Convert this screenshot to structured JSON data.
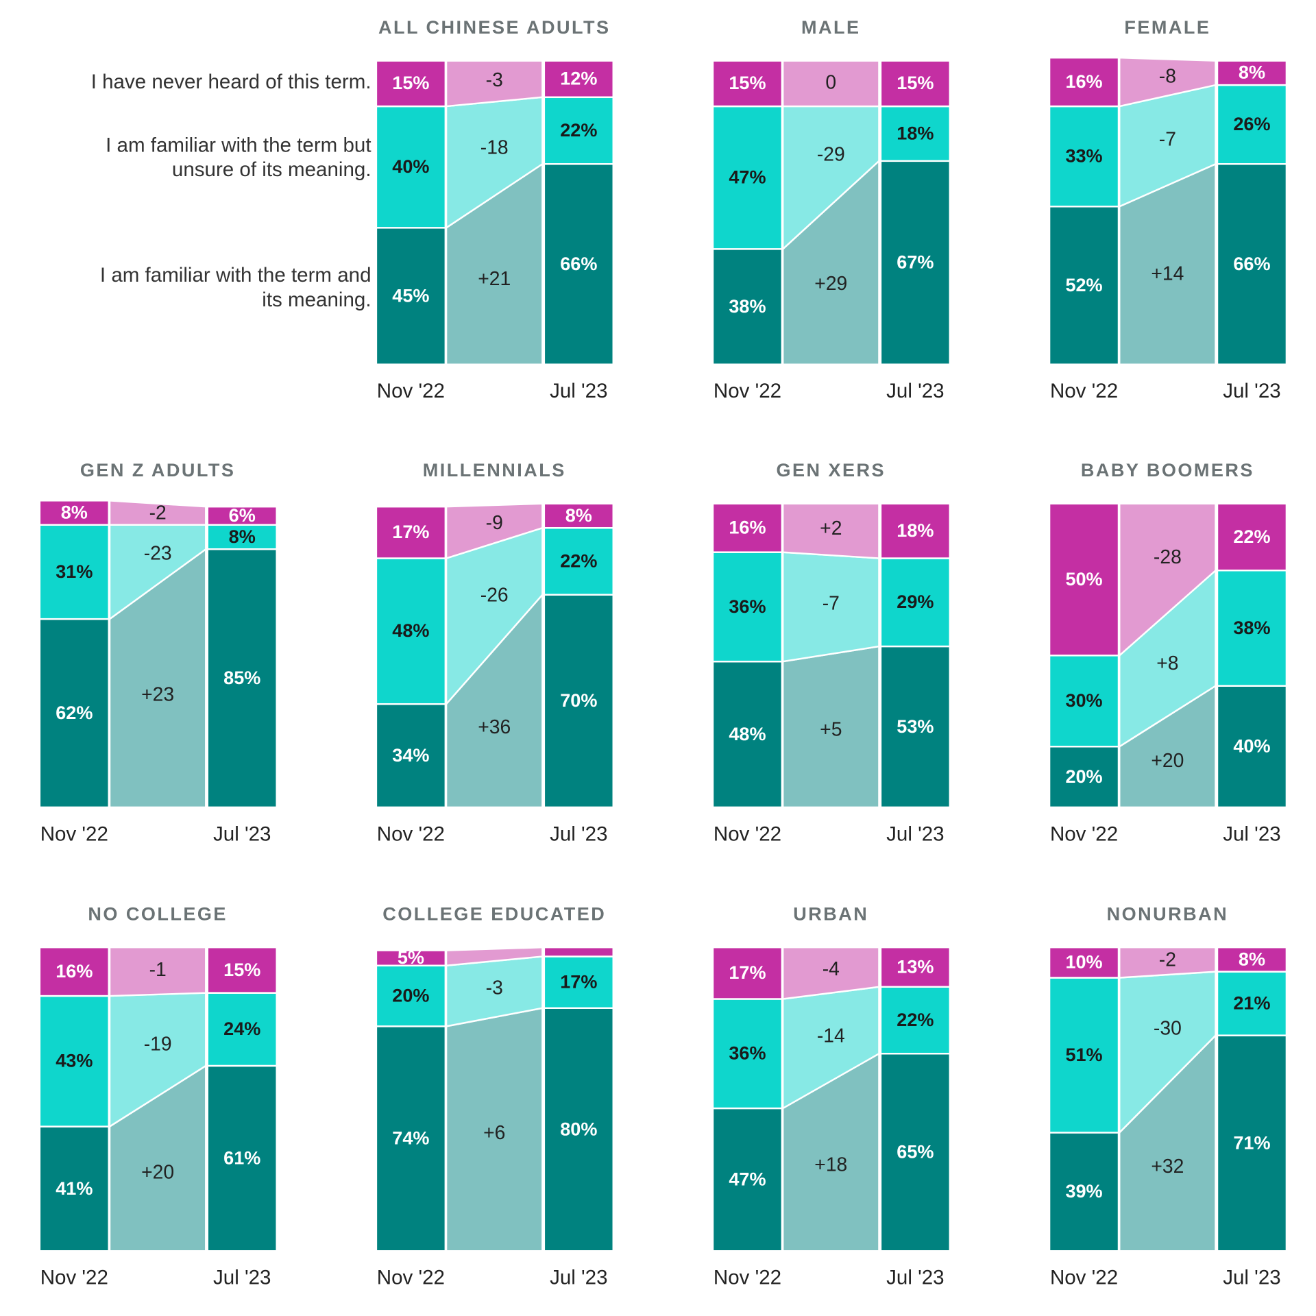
{
  "chart_data": [
    {
      "type": "bar",
      "title": "ALL CHINESE ADULTS",
      "categories": [
        "Nov '22",
        "Jul '23"
      ],
      "ylim": [
        0,
        100
      ],
      "series": [
        {
          "name": "I am familiar with the term and its meaning.",
          "color": "#00827f",
          "band_color": "#80c1c0",
          "values": [
            45,
            66
          ],
          "value_labels": [
            "45%",
            "66%"
          ],
          "change": {
            "value": 21,
            "label": "+21"
          }
        },
        {
          "name": "I am familiar with the term but unsure of its meaning.",
          "color": "#0fd6cc",
          "band_color": "#87e9e5",
          "values": [
            40,
            22
          ],
          "value_labels": [
            "40%",
            "22%"
          ],
          "change": -18
        },
        {
          "name": "I have never heard of this term.",
          "color": "#c42fa3",
          "band_color": "#e29ad1",
          "values": [
            15,
            12
          ],
          "value_labels": [
            "15%",
            "12%"
          ],
          "change": -3
        }
      ]
    },
    {
      "type": "bar",
      "title": "MALE",
      "categories": [
        "Nov '22",
        "Jul '23"
      ],
      "ylim": [
        0,
        100
      ],
      "series": [
        {
          "color": "#00827f",
          "band_color": "#80c1c0",
          "values": [
            38,
            67
          ],
          "value_labels": [
            "38%",
            "67%"
          ],
          "change": {
            "value": 29,
            "label": "+29"
          }
        },
        {
          "color": "#0fd6cc",
          "band_color": "#87e9e5",
          "values": [
            47,
            18
          ],
          "value_labels": [
            "47%",
            "18%"
          ],
          "change": -29
        },
        {
          "color": "#c42fa3",
          "band_color": "#e29ad1",
          "values": [
            15,
            15
          ],
          "value_labels": [
            "15%",
            "15%"
          ],
          "change": 0
        }
      ]
    },
    {
      "type": "bar",
      "title": "FEMALE",
      "categories": [
        "Nov '22",
        "Jul '23"
      ],
      "ylim": [
        0,
        100
      ],
      "series": [
        {
          "color": "#00827f",
          "band_color": "#80c1c0",
          "values": [
            52,
            66
          ],
          "value_labels": [
            "52%",
            "66%"
          ],
          "change": {
            "value": 14,
            "label": "+14"
          }
        },
        {
          "color": "#0fd6cc",
          "band_color": "#87e9e5",
          "values": [
            33,
            26
          ],
          "value_labels": [
            "33%",
            "26%"
          ],
          "change": -7
        },
        {
          "color": "#c42fa3",
          "band_color": "#e29ad1",
          "values": [
            16,
            8
          ],
          "value_labels": [
            "16%",
            "8%"
          ],
          "change": -8
        }
      ]
    },
    {
      "type": "bar",
      "title": "GEN Z ADULTS",
      "categories": [
        "Nov '22",
        "Jul '23"
      ],
      "ylim": [
        0,
        100
      ],
      "series": [
        {
          "color": "#00827f",
          "band_color": "#80c1c0",
          "values": [
            62,
            85
          ],
          "value_labels": [
            "62%",
            "85%"
          ],
          "change": {
            "value": 23,
            "label": "+23"
          }
        },
        {
          "color": "#0fd6cc",
          "band_color": "#87e9e5",
          "values": [
            31,
            8
          ],
          "value_labels": [
            "31%",
            "8%"
          ],
          "change": -23
        },
        {
          "color": "#c42fa3",
          "band_color": "#e29ad1",
          "values": [
            8,
            6
          ],
          "value_labels": [
            "8%",
            "6%"
          ],
          "change": -2
        }
      ]
    },
    {
      "type": "bar",
      "title": "MILLENNIALS",
      "categories": [
        "Nov '22",
        "Jul '23"
      ],
      "ylim": [
        0,
        100
      ],
      "series": [
        {
          "color": "#00827f",
          "band_color": "#80c1c0",
          "values": [
            34,
            70
          ],
          "value_labels": [
            "34%",
            "70%"
          ],
          "change": {
            "value": 36,
            "label": "+36"
          }
        },
        {
          "color": "#0fd6cc",
          "band_color": "#87e9e5",
          "values": [
            48,
            22
          ],
          "value_labels": [
            "48%",
            "22%"
          ],
          "change": -26
        },
        {
          "color": "#c42fa3",
          "band_color": "#e29ad1",
          "values": [
            17,
            8
          ],
          "value_labels": [
            "17%",
            "8%"
          ],
          "change": -9
        }
      ]
    },
    {
      "type": "bar",
      "title": "GEN XERS",
      "categories": [
        "Nov '22",
        "Jul '23"
      ],
      "ylim": [
        0,
        100
      ],
      "series": [
        {
          "color": "#00827f",
          "band_color": "#80c1c0",
          "values": [
            48,
            53
          ],
          "value_labels": [
            "48%",
            "53%"
          ],
          "change": {
            "value": 5,
            "label": "+5"
          }
        },
        {
          "color": "#0fd6cc",
          "band_color": "#87e9e5",
          "values": [
            36,
            29
          ],
          "value_labels": [
            "36%",
            "29%"
          ],
          "change": -7
        },
        {
          "color": "#c42fa3",
          "band_color": "#e29ad1",
          "values": [
            16,
            18
          ],
          "value_labels": [
            "16%",
            "18%"
          ],
          "change": {
            "value": 2,
            "label": "+2"
          }
        }
      ]
    },
    {
      "type": "bar",
      "title": "BABY BOOMERS",
      "categories": [
        "Nov '22",
        "Jul '23"
      ],
      "ylim": [
        0,
        100
      ],
      "series": [
        {
          "color": "#00827f",
          "band_color": "#80c1c0",
          "values": [
            20,
            40
          ],
          "value_labels": [
            "20%",
            "40%"
          ],
          "change": {
            "value": 20,
            "label": "+20"
          }
        },
        {
          "color": "#0fd6cc",
          "band_color": "#87e9e5",
          "values": [
            30,
            38
          ],
          "value_labels": [
            "30%",
            "38%"
          ],
          "change": {
            "value": 8,
            "label": "+8"
          }
        },
        {
          "color": "#c42fa3",
          "band_color": "#e29ad1",
          "values": [
            50,
            22
          ],
          "value_labels": [
            "50%",
            "22%"
          ],
          "change": -28
        }
      ]
    },
    {
      "type": "bar",
      "title": "NO COLLEGE",
      "categories": [
        "Nov '22",
        "Jul '23"
      ],
      "ylim": [
        0,
        100
      ],
      "series": [
        {
          "color": "#00827f",
          "band_color": "#80c1c0",
          "values": [
            41,
            61
          ],
          "value_labels": [
            "41%",
            "61%"
          ],
          "change": {
            "value": 20,
            "label": "+20"
          }
        },
        {
          "color": "#0fd6cc",
          "band_color": "#87e9e5",
          "values": [
            43,
            24
          ],
          "value_labels": [
            "43%",
            "24%"
          ],
          "change": -19
        },
        {
          "color": "#c42fa3",
          "band_color": "#e29ad1",
          "values": [
            16,
            15
          ],
          "value_labels": [
            "16%",
            "15%"
          ],
          "change": -1
        }
      ]
    },
    {
      "type": "bar",
      "title": "COLLEGE EDUCATED",
      "categories": [
        "Nov '22",
        "Jul '23"
      ],
      "ylim": [
        0,
        100
      ],
      "series": [
        {
          "color": "#00827f",
          "band_color": "#80c1c0",
          "values": [
            74,
            80
          ],
          "value_labels": [
            "74%",
            "80%"
          ],
          "change": {
            "value": 6,
            "label": "+6"
          }
        },
        {
          "color": "#0fd6cc",
          "band_color": "#87e9e5",
          "values": [
            20,
            17
          ],
          "value_labels": [
            "20%",
            "17%"
          ],
          "change": -3
        },
        {
          "color": "#c42fa3",
          "band_color": "#e29ad1",
          "values": [
            5,
            3
          ],
          "value_labels": [
            "5%",
            null
          ],
          "change": null
        }
      ]
    },
    {
      "type": "bar",
      "title": "URBAN",
      "categories": [
        "Nov '22",
        "Jul '23"
      ],
      "ylim": [
        0,
        100
      ],
      "series": [
        {
          "color": "#00827f",
          "band_color": "#80c1c0",
          "values": [
            47,
            65
          ],
          "value_labels": [
            "47%",
            "65%"
          ],
          "change": {
            "value": 18,
            "label": "+18"
          }
        },
        {
          "color": "#0fd6cc",
          "band_color": "#87e9e5",
          "values": [
            36,
            22
          ],
          "value_labels": [
            "36%",
            "22%"
          ],
          "change": -14
        },
        {
          "color": "#c42fa3",
          "band_color": "#e29ad1",
          "values": [
            17,
            13
          ],
          "value_labels": [
            "17%",
            "13%"
          ],
          "change": -4
        }
      ]
    },
    {
      "type": "bar",
      "title": "NONURBAN",
      "categories": [
        "Nov '22",
        "Jul '23"
      ],
      "ylim": [
        0,
        100
      ],
      "series": [
        {
          "color": "#00827f",
          "band_color": "#80c1c0",
          "values": [
            39,
            71
          ],
          "value_labels": [
            "39%",
            "71%"
          ],
          "change": {
            "value": 32,
            "label": "+32"
          }
        },
        {
          "color": "#0fd6cc",
          "band_color": "#87e9e5",
          "values": [
            51,
            21
          ],
          "value_labels": [
            "51%",
            "21%"
          ],
          "change": -30
        },
        {
          "color": "#c42fa3",
          "band_color": "#e29ad1",
          "values": [
            10,
            8
          ],
          "value_labels": [
            "10%",
            "8%"
          ],
          "change": -2
        }
      ]
    }
  ]
}
